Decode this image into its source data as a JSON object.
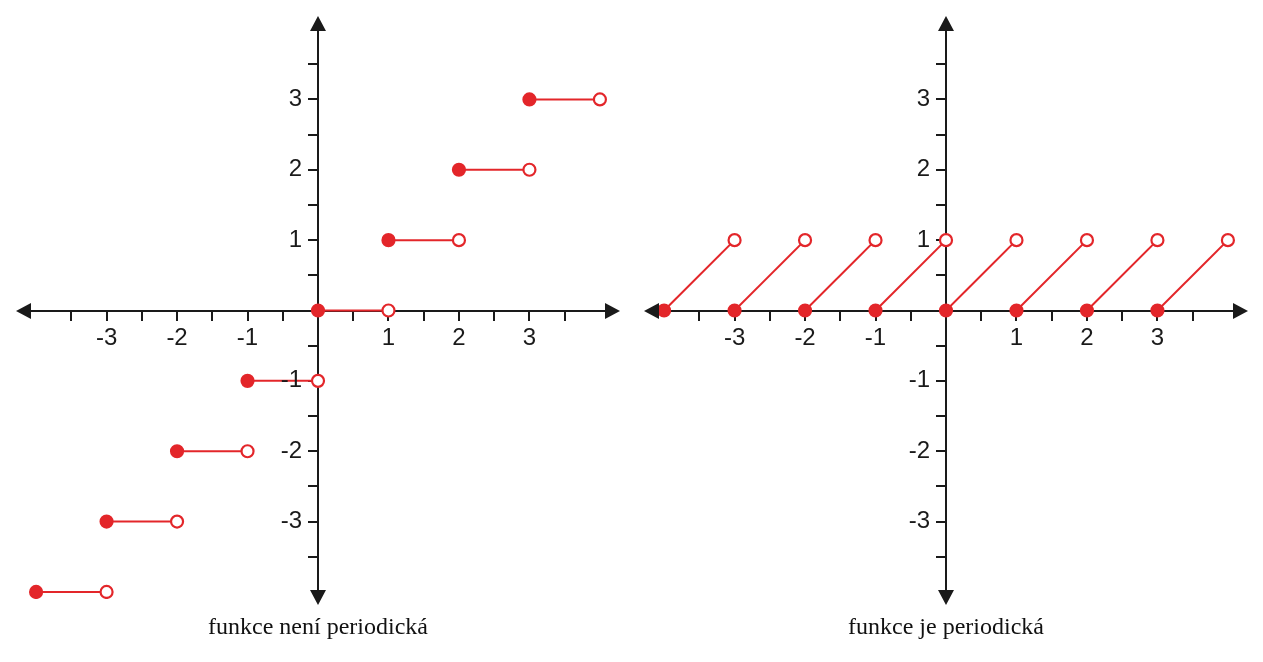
{
  "chart_data": [
    {
      "type": "line",
      "title": "funkce není periodická",
      "xlim": [
        -4.2,
        4.2
      ],
      "ylim": [
        -4.1,
        4.1
      ],
      "xticks": [
        {
          "value": -3.5,
          "label": null
        },
        -3,
        {
          "value": -2.5,
          "label": null
        },
        -2,
        {
          "value": -1.5,
          "label": null
        },
        -1,
        {
          "value": -0.5,
          "label": null
        },
        {
          "value": 0,
          "label": null
        },
        {
          "value": 0.5,
          "label": null
        },
        1,
        {
          "value": 1.5,
          "label": null
        },
        2,
        {
          "value": 2.5,
          "label": null
        },
        3,
        {
          "value": 3.5,
          "label": null
        }
      ],
      "yticks": [
        {
          "value": -3.5,
          "label": null
        },
        -3,
        {
          "value": -2.5,
          "label": null
        },
        -2,
        {
          "value": -1.5,
          "label": null
        },
        -1,
        {
          "value": -0.5,
          "label": null
        },
        {
          "value": 0,
          "label": null
        },
        {
          "value": 0.5,
          "label": null
        },
        1,
        {
          "value": 1.5,
          "label": null
        },
        2,
        {
          "value": 2.5,
          "label": null
        },
        3,
        {
          "value": 3.5,
          "label": null
        }
      ],
      "series": [
        {
          "color": "#e3262a",
          "marker": "none",
          "x": [
            -4,
            -3
          ],
          "values": [
            -4,
            -4
          ]
        },
        {
          "color": "#e3262a",
          "marker": "none",
          "x": [
            -3,
            -2
          ],
          "values": [
            -3,
            -3
          ]
        },
        {
          "color": "#e3262a",
          "marker": "none",
          "x": [
            -2,
            -1
          ],
          "values": [
            -2,
            -2
          ]
        },
        {
          "color": "#e3262a",
          "marker": "none",
          "x": [
            -1,
            0
          ],
          "values": [
            -1,
            -1
          ]
        },
        {
          "color": "#e3262a",
          "marker": "none",
          "x": [
            0,
            1
          ],
          "values": [
            0,
            0
          ]
        },
        {
          "color": "#e3262a",
          "marker": "none",
          "x": [
            1,
            2
          ],
          "values": [
            1,
            1
          ]
        },
        {
          "color": "#e3262a",
          "marker": "none",
          "x": [
            2,
            3
          ],
          "values": [
            2,
            2
          ]
        },
        {
          "color": "#e3262a",
          "marker": "none",
          "x": [
            3,
            4
          ],
          "values": [
            3,
            3
          ]
        },
        {
          "type": "scatter",
          "color": "#e3262a",
          "marker": "circle",
          "x": [
            -4,
            -3,
            -2,
            -1,
            0,
            1,
            2,
            3
          ],
          "values": [
            -4,
            -3,
            -2,
            -1,
            0,
            1,
            2,
            3
          ]
        },
        {
          "type": "scatter",
          "color": "#e3262a",
          "marker": "circle",
          "x": [
            -3,
            -2,
            -1,
            0,
            1,
            2,
            3,
            4
          ],
          "values": [
            -4,
            -3,
            -2,
            -1,
            0,
            1,
            2,
            3
          ]
        }
      ]
    },
    {
      "type": "line",
      "title": "funkce je periodická",
      "xlim": [
        -4.2,
        4.2
      ],
      "ylim": [
        -4.1,
        4.1
      ],
      "xticks": [
        {
          "value": -3.5,
          "label": null
        },
        -3,
        {
          "value": -2.5,
          "label": null
        },
        -2,
        {
          "value": -1.5,
          "label": null
        },
        -1,
        {
          "value": -0.5,
          "label": null
        },
        {
          "value": 0,
          "label": null
        },
        {
          "value": 0.5,
          "label": null
        },
        1,
        {
          "value": 1.5,
          "label": null
        },
        2,
        {
          "value": 2.5,
          "label": null
        },
        3,
        {
          "value": 3.5,
          "label": null
        }
      ],
      "yticks": [
        {
          "value": -3.5,
          "label": null
        },
        -3,
        {
          "value": -2.5,
          "label": null
        },
        -2,
        {
          "value": -1.5,
          "label": null
        },
        -1,
        {
          "value": -0.5,
          "label": null
        },
        {
          "value": 0,
          "label": null
        },
        {
          "value": 0.5,
          "label": null
        },
        1,
        {
          "value": 1.5,
          "label": null
        },
        2,
        {
          "value": 2.5,
          "label": null
        },
        3,
        {
          "value": 3.5,
          "label": null
        }
      ],
      "series": [
        {
          "color": "#e3262a",
          "marker": "none",
          "x": [
            -4,
            -3
          ],
          "values": [
            0,
            1
          ]
        },
        {
          "color": "#e3262a",
          "marker": "none",
          "x": [
            -3,
            -2
          ],
          "values": [
            0,
            1
          ]
        },
        {
          "color": "#e3262a",
          "marker": "none",
          "x": [
            -2,
            -1
          ],
          "values": [
            0,
            1
          ]
        },
        {
          "color": "#e3262a",
          "marker": "none",
          "x": [
            -1,
            0
          ],
          "values": [
            0,
            1
          ]
        },
        {
          "color": "#e3262a",
          "marker": "none",
          "x": [
            0,
            1
          ],
          "values": [
            0,
            1
          ]
        },
        {
          "color": "#e3262a",
          "marker": "none",
          "x": [
            1,
            2
          ],
          "values": [
            0,
            1
          ]
        },
        {
          "color": "#e3262a",
          "marker": "none",
          "x": [
            2,
            3
          ],
          "values": [
            0,
            1
          ]
        },
        {
          "color": "#e3262a",
          "marker": "none",
          "x": [
            3,
            4
          ],
          "values": [
            0,
            1
          ]
        },
        {
          "type": "scatter",
          "color": "#e3262a",
          "marker": "circle",
          "x": [
            -4,
            -3,
            -2,
            -1,
            0,
            1,
            2,
            3
          ],
          "values": [
            0,
            0,
            0,
            0,
            0,
            0,
            0,
            0
          ]
        },
        {
          "type": "scatter",
          "color": "#e3262a",
          "marker": "circle",
          "x": [
            -3,
            -2,
            -1,
            0,
            1,
            2,
            3,
            4
          ],
          "values": [
            1,
            1,
            1,
            1,
            1,
            1,
            1,
            1
          ]
        }
      ]
    }
  ]
}
